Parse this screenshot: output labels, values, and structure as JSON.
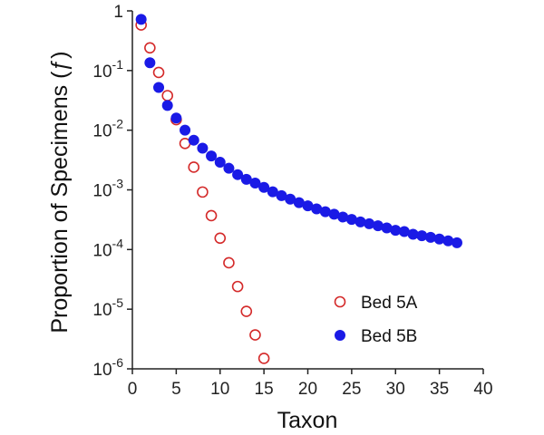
{
  "chart_data": {
    "type": "scatter",
    "xlabel": "Taxon",
    "ylabel": "Proportion of Specimens (ƒ)",
    "xlim": [
      0,
      40
    ],
    "ylim": [
      1e-06,
      1
    ],
    "y_scale": "log",
    "grid": false,
    "legend_position": "bottom-right",
    "x_ticks": [
      "0",
      "5",
      "10",
      "15",
      "20",
      "25",
      "30",
      "35",
      "40"
    ],
    "y_ticks": [
      {
        "base": "1",
        "exp": ""
      },
      {
        "base": "10",
        "exp": "-1"
      },
      {
        "base": "10",
        "exp": "-2"
      },
      {
        "base": "10",
        "exp": "-3"
      },
      {
        "base": "10",
        "exp": "-4"
      },
      {
        "base": "10",
        "exp": "-5"
      },
      {
        "base": "10",
        "exp": "-6"
      }
    ],
    "series": [
      {
        "name": "Bed 5A",
        "marker": "open-circle",
        "color": "#d42a2a",
        "x": [
          1,
          2,
          3,
          4,
          5,
          6,
          7,
          8,
          9,
          10,
          11,
          12,
          13,
          14,
          15
        ],
        "y": [
          0.58,
          0.24,
          0.093,
          0.038,
          0.015,
          0.006,
          0.0024,
          0.00092,
          0.00037,
          0.000155,
          6e-05,
          2.4e-05,
          9.2e-06,
          3.7e-06,
          1.5e-06
        ]
      },
      {
        "name": "Bed 5B",
        "marker": "filled-circle",
        "color": "#1a1ae6",
        "x": [
          1,
          2,
          3,
          4,
          5,
          6,
          7,
          8,
          9,
          10,
          11,
          12,
          13,
          14,
          15,
          16,
          17,
          18,
          19,
          20,
          21,
          22,
          23,
          24,
          25,
          26,
          27,
          28,
          29,
          30,
          31,
          32,
          33,
          34,
          35,
          36,
          37
        ],
        "y": [
          0.72,
          0.135,
          0.052,
          0.026,
          0.016,
          0.01,
          0.0068,
          0.005,
          0.0037,
          0.0029,
          0.0023,
          0.0018,
          0.0015,
          0.0013,
          0.0011,
          0.00093,
          0.0008,
          0.0007,
          0.00061,
          0.00054,
          0.00048,
          0.00043,
          0.00039,
          0.00035,
          0.00032,
          0.00029,
          0.00027,
          0.00025,
          0.00023,
          0.00021,
          0.0002,
          0.00018,
          0.00017,
          0.00016,
          0.00015,
          0.00014,
          0.00013
        ]
      }
    ]
  }
}
